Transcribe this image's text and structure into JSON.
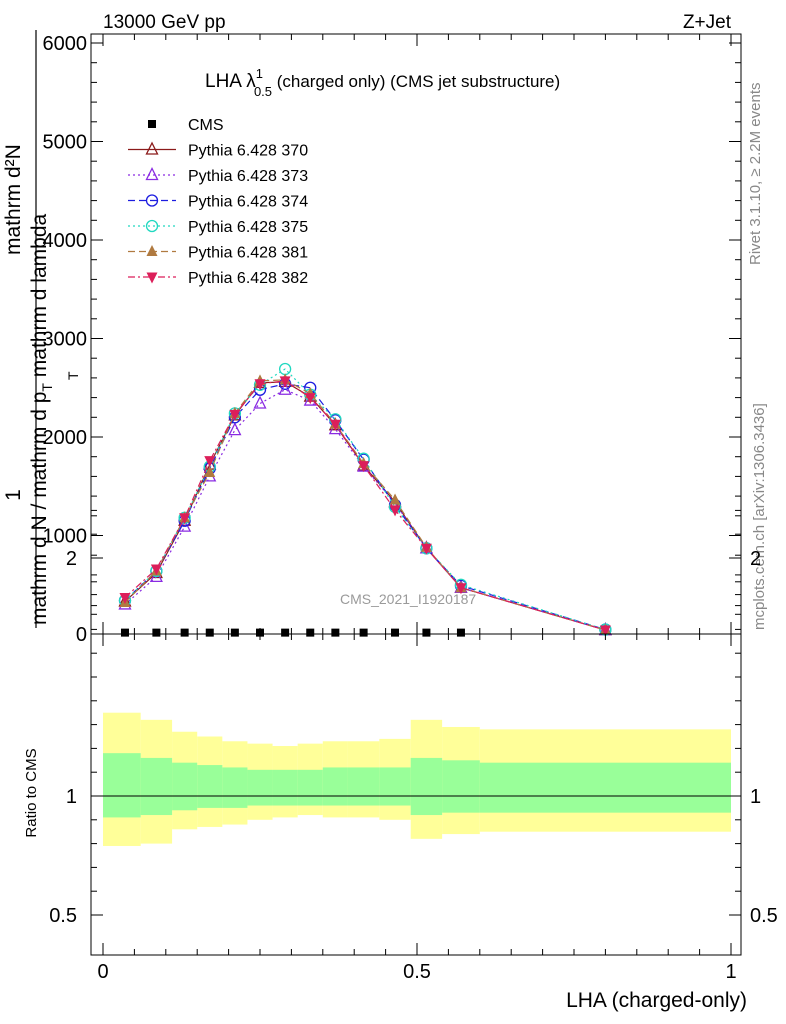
{
  "header": {
    "left": "13000 GeV pp",
    "right": "Z+Jet"
  },
  "main_title": {
    "prefix": "LHA ",
    "lambda": "λ",
    "sup": "1",
    "sub": "0.5",
    "suffix": " (charged only) (CMS jet substructure)"
  },
  "ylabel_main": {
    "numerator_one": "1",
    "numerator_expr": "mathrm d²N",
    "denominator_expr": "mathrm d N / mathrm d p",
    "denominator_sub": "T",
    "denominator_tail": " mathrm d lambda",
    "extra_sub": "T"
  },
  "ylabel_ratio": "Ratio to CMS",
  "xlabel": "LHA (charged-only)",
  "side_right_top": "Rivet 3.1.10, ≥ 2.2M events",
  "side_right_bottom": "mcplots.cern.ch [arXiv:1306.3436]",
  "watermark": "CMS_2021_I1920187",
  "colors": {
    "cms": "#000000",
    "p370": "#8b1a1a",
    "p373": "#8a2be2",
    "p374": "#1c1ce0",
    "p375": "#20d8c0",
    "p381": "#b07a40",
    "p382": "#dc1f5a",
    "band_outer": "#ffff99",
    "band_inner": "#99ff99"
  },
  "chart_data": {
    "type": "line",
    "x": [
      0.035,
      0.085,
      0.13,
      0.17,
      0.21,
      0.25,
      0.29,
      0.33,
      0.37,
      0.415,
      0.465,
      0.515,
      0.57,
      0.8
    ],
    "xlim": [
      0,
      1
    ],
    "ylim_main": [
      0,
      6000
    ],
    "ylim_ratio": [
      0.35,
      2.3
    ],
    "y_ticks_main": [
      "0",
      "1000",
      "2000",
      "3000",
      "4000",
      "5000",
      "6000"
    ],
    "x_ticks": [
      "0",
      "0.5",
      "1"
    ],
    "ratio_ticks": [
      "0.5",
      "1",
      "2"
    ],
    "series": [
      {
        "name": "CMS",
        "key": "cms",
        "marker": "square",
        "dash": "",
        "values": [
          14,
          14,
          14,
          14,
          14,
          14,
          14,
          14,
          14,
          14,
          14,
          14,
          14,
          null
        ]
      },
      {
        "name": "Pythia 6.428 370",
        "key": "p370",
        "marker": "triangle-open",
        "dash": "",
        "values": [
          330,
          620,
          1150,
          1720,
          2220,
          2550,
          2560,
          2410,
          2120,
          1710,
          1340,
          870,
          470,
          40
        ]
      },
      {
        "name": "Pythia 6.428 373",
        "key": "p373",
        "marker": "triangle-open",
        "dash": "2,3",
        "values": [
          300,
          580,
          1090,
          1600,
          2070,
          2340,
          2480,
          2370,
          2080,
          1700,
          1330,
          870,
          470,
          40
        ]
      },
      {
        "name": "Pythia 6.428 374",
        "key": "p374",
        "marker": "circle-open",
        "dash": "7,4",
        "values": [
          340,
          640,
          1150,
          1680,
          2200,
          2480,
          2540,
          2500,
          2170,
          1770,
          1310,
          870,
          490,
          45
        ]
      },
      {
        "name": "Pythia 6.428 375",
        "key": "p375",
        "marker": "circle-open",
        "dash": "2,3",
        "values": [
          340,
          640,
          1180,
          1700,
          2240,
          2530,
          2690,
          2430,
          2180,
          1780,
          1290,
          870,
          500,
          45
        ]
      },
      {
        "name": "Pythia 6.428 381",
        "key": "p381",
        "marker": "triangle",
        "dash": "7,4",
        "values": [
          320,
          640,
          1180,
          1640,
          2240,
          2570,
          2580,
          2440,
          2130,
          1730,
          1360,
          880,
          470,
          40
        ]
      },
      {
        "name": "Pythia 6.428 382",
        "key": "p382",
        "marker": "triangle-down",
        "dash": "7,3,2,3",
        "values": [
          370,
          660,
          1180,
          1760,
          2230,
          2540,
          2570,
          2400,
          2130,
          1710,
          1260,
          870,
          470,
          40
        ]
      }
    ],
    "ratio_band": {
      "edges": [
        0,
        0.06,
        0.11,
        0.15,
        0.19,
        0.23,
        0.27,
        0.31,
        0.35,
        0.39,
        0.44,
        0.49,
        0.54,
        0.6,
        1
      ],
      "outer_lo": [
        0.79,
        0.8,
        0.86,
        0.87,
        0.88,
        0.9,
        0.91,
        0.92,
        0.91,
        0.91,
        0.9,
        0.82,
        0.84,
        0.85
      ],
      "outer_hi": [
        1.35,
        1.32,
        1.27,
        1.25,
        1.23,
        1.22,
        1.21,
        1.22,
        1.23,
        1.23,
        1.24,
        1.32,
        1.29,
        1.28
      ],
      "inner_lo": [
        0.91,
        0.92,
        0.94,
        0.95,
        0.95,
        0.96,
        0.96,
        0.96,
        0.96,
        0.96,
        0.96,
        0.92,
        0.93,
        0.93
      ],
      "inner_hi": [
        1.18,
        1.16,
        1.14,
        1.13,
        1.12,
        1.11,
        1.11,
        1.11,
        1.12,
        1.12,
        1.12,
        1.16,
        1.15,
        1.14
      ]
    },
    "legend_position": "top-left"
  }
}
